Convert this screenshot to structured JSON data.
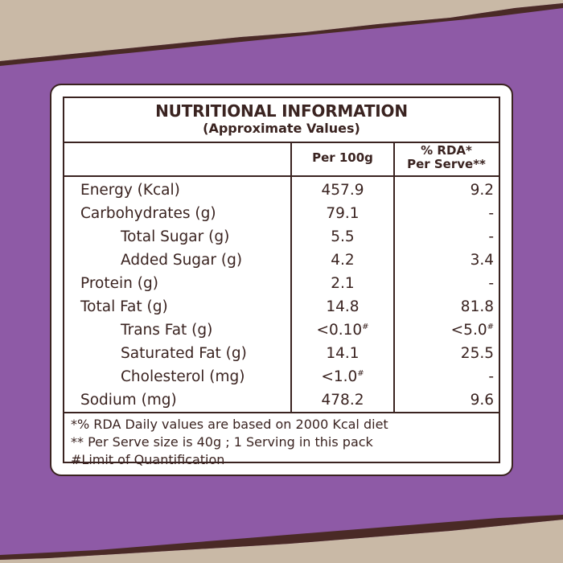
{
  "colors": {
    "background": "#8e5aa6",
    "paper": "#c9b9a6",
    "ink": "#3a2320",
    "panel": "#ffffff"
  },
  "title": "NUTRITIONAL INFORMATION",
  "subtitle": "(Approximate Values)",
  "columns": {
    "per100": "Per 100g",
    "rda_line1": "% RDA*",
    "rda_line2": "Per Serve**"
  },
  "rows": [
    {
      "name": "Energy (Kcal)",
      "per100": "457.9",
      "rda": "9.2",
      "indent": false
    },
    {
      "name": "Carbohydrates (g)",
      "per100": "79.1",
      "rda": "-",
      "indent": false
    },
    {
      "name": "Total Sugar (g)",
      "per100": "5.5",
      "rda": "-",
      "indent": true
    },
    {
      "name": "Added Sugar (g)",
      "per100": "4.2",
      "rda": "3.4",
      "indent": true
    },
    {
      "name": "Protein (g)",
      "per100": "2.1",
      "rda": "-",
      "indent": false
    },
    {
      "name": "Total Fat (g)",
      "per100": "14.8",
      "rda": "81.8",
      "indent": false
    },
    {
      "name": "Trans Fat (g)",
      "per100": "<0.10",
      "per100_mark": "#",
      "rda": "<5.0",
      "rda_mark": "#",
      "indent": true
    },
    {
      "name": "Saturated Fat (g)",
      "per100": "14.1",
      "rda": "25.5",
      "indent": true
    },
    {
      "name": "Cholesterol (mg)",
      "per100": "<1.0",
      "per100_mark": "#",
      "rda": "-",
      "indent": true
    },
    {
      "name": "Sodium (mg)",
      "per100": "478.2",
      "rda": "9.6",
      "indent": false
    }
  ],
  "footnotes": [
    "*% RDA Daily values are based on 2000 Kcal diet",
    "** Per Serve size is 40g ; 1 Serving in this pack",
    "#Limit of Quantification"
  ]
}
